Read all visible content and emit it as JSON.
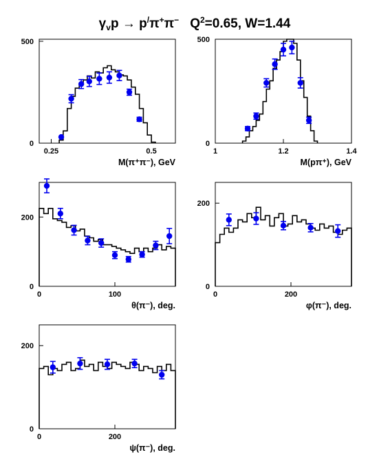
{
  "title": {
    "reaction_lhs": "γ",
    "reaction_lhs_sub": "v",
    "reaction_mid": "p → p",
    "reaction_prime": "/",
    "reaction_pi1": "π",
    "reaction_pi1_sup": "+",
    "reaction_pi2": "π",
    "reaction_pi2_sup": "−",
    "q2_label": "Q",
    "q2_sup": "2",
    "q2_value": "=0.65, W=1.44"
  },
  "colors": {
    "data_points": "#0000ee",
    "histogram": "#000000",
    "frame": "#000000"
  },
  "chart_data": [
    {
      "type": "histogram+scatter",
      "xlabel": "M(π⁺π⁻), GeV",
      "xlim": [
        0.22,
        0.56
      ],
      "ylim": [
        0,
        510
      ],
      "x_ticks": [
        {
          "v": 0.25,
          "label": "0.25"
        },
        {
          "v": 0.5,
          "label": "0.5"
        }
      ],
      "y_ticks": [
        {
          "v": 0,
          "label": "0"
        },
        {
          "v": 500,
          "label": "500"
        }
      ],
      "hist_edges": [
        0.27,
        0.28,
        0.29,
        0.3,
        0.31,
        0.32,
        0.33,
        0.34,
        0.35,
        0.36,
        0.37,
        0.38,
        0.39,
        0.4,
        0.41,
        0.42,
        0.43,
        0.44,
        0.45,
        0.46,
        0.47,
        0.48,
        0.49,
        0.5,
        0.51
      ],
      "hist_values": [
        15,
        60,
        170,
        230,
        270,
        290,
        310,
        330,
        320,
        350,
        345,
        370,
        380,
        360,
        350,
        335,
        330,
        310,
        275,
        240,
        170,
        100,
        40,
        5
      ],
      "points": [
        {
          "x": 0.275,
          "y": 30,
          "err": 0
        },
        {
          "x": 0.3,
          "y": 218,
          "err": 20
        },
        {
          "x": 0.325,
          "y": 290,
          "err": 22
        },
        {
          "x": 0.345,
          "y": 303,
          "err": 25
        },
        {
          "x": 0.37,
          "y": 316,
          "err": 28
        },
        {
          "x": 0.395,
          "y": 322,
          "err": 28
        },
        {
          "x": 0.42,
          "y": 332,
          "err": 25
        },
        {
          "x": 0.445,
          "y": 250,
          "err": 15
        },
        {
          "x": 0.47,
          "y": 117,
          "err": 10
        }
      ]
    },
    {
      "type": "histogram+scatter",
      "xlabel": "M(pπ⁺), GeV",
      "xlim": [
        1.0,
        1.4
      ],
      "ylim": [
        0,
        500
      ],
      "x_ticks": [
        {
          "v": 1.0,
          "label": "1"
        },
        {
          "v": 1.2,
          "label": "1.2"
        },
        {
          "v": 1.4,
          "label": "1.4"
        }
      ],
      "y_ticks": [
        {
          "v": 0,
          "label": "0"
        },
        {
          "v": 500,
          "label": "500"
        }
      ],
      "hist_edges": [
        1.08,
        1.09,
        1.1,
        1.11,
        1.12,
        1.13,
        1.14,
        1.15,
        1.16,
        1.17,
        1.18,
        1.19,
        1.2,
        1.21,
        1.22,
        1.23,
        1.24,
        1.25,
        1.26,
        1.27,
        1.28,
        1.29,
        1.3
      ],
      "hist_values": [
        10,
        30,
        60,
        80,
        110,
        140,
        200,
        260,
        300,
        360,
        400,
        440,
        490,
        520,
        510,
        480,
        400,
        300,
        220,
        130,
        60,
        10
      ],
      "points": [
        {
          "x": 1.095,
          "y": 70,
          "err": 10
        },
        {
          "x": 1.12,
          "y": 130,
          "err": 15
        },
        {
          "x": 1.15,
          "y": 290,
          "err": 20
        },
        {
          "x": 1.175,
          "y": 380,
          "err": 25
        },
        {
          "x": 1.2,
          "y": 450,
          "err": 30
        },
        {
          "x": 1.225,
          "y": 460,
          "err": 30
        },
        {
          "x": 1.25,
          "y": 290,
          "err": 25
        },
        {
          "x": 1.275,
          "y": 110,
          "err": 15
        }
      ]
    },
    {
      "type": "histogram+scatter",
      "xlabel": "θ(π⁻), deg.",
      "xlim": [
        0,
        180
      ],
      "ylim": [
        0,
        300
      ],
      "x_ticks": [
        {
          "v": 0,
          "label": "0"
        },
        {
          "v": 100,
          "label": "100"
        }
      ],
      "y_ticks": [
        {
          "v": 0,
          "label": "0"
        },
        {
          "v": 200,
          "label": "200"
        }
      ],
      "hist_edges": [
        0,
        6,
        12,
        18,
        24,
        30,
        36,
        42,
        48,
        54,
        60,
        66,
        72,
        78,
        84,
        90,
        96,
        102,
        108,
        114,
        120,
        126,
        132,
        138,
        144,
        150,
        156,
        162,
        168,
        174,
        180
      ],
      "hist_values": [
        225,
        210,
        225,
        195,
        190,
        185,
        170,
        175,
        160,
        165,
        145,
        140,
        130,
        135,
        120,
        120,
        115,
        110,
        105,
        100,
        95,
        110,
        100,
        110,
        100,
        110,
        120,
        105,
        115,
        110
      ],
      "points": [
        {
          "x": 10,
          "y": 290,
          "err": 20
        },
        {
          "x": 28,
          "y": 210,
          "err": 15
        },
        {
          "x": 46,
          "y": 162,
          "err": 14
        },
        {
          "x": 64,
          "y": 132,
          "err": 12
        },
        {
          "x": 82,
          "y": 125,
          "err": 12
        },
        {
          "x": 100,
          "y": 90,
          "err": 10
        },
        {
          "x": 118,
          "y": 78,
          "err": 8
        },
        {
          "x": 136,
          "y": 92,
          "err": 8
        },
        {
          "x": 154,
          "y": 118,
          "err": 12
        },
        {
          "x": 172,
          "y": 145,
          "err": 22
        }
      ]
    },
    {
      "type": "histogram+scatter",
      "xlabel": "φ(π⁻), deg.",
      "xlim": [
        0,
        360
      ],
      "ylim": [
        0,
        250
      ],
      "x_ticks": [
        {
          "v": 0,
          "label": "0"
        },
        {
          "v": 200,
          "label": "200"
        }
      ],
      "y_ticks": [
        {
          "v": 0,
          "label": "0"
        },
        {
          "v": 200,
          "label": "200"
        }
      ],
      "hist_edges": [
        0,
        12,
        24,
        36,
        48,
        60,
        72,
        84,
        96,
        108,
        120,
        132,
        144,
        156,
        168,
        180,
        192,
        204,
        216,
        228,
        240,
        252,
        264,
        276,
        288,
        300,
        312,
        324,
        336,
        348,
        360
      ],
      "hist_values": [
        105,
        125,
        140,
        130,
        140,
        160,
        155,
        175,
        165,
        190,
        160,
        170,
        145,
        165,
        175,
        145,
        150,
        170,
        155,
        160,
        150,
        140,
        135,
        150,
        140,
        145,
        130,
        125,
        135,
        140
      ],
      "points": [
        {
          "x": 36,
          "y": 160,
          "err": 14
        },
        {
          "x": 108,
          "y": 163,
          "err": 14
        },
        {
          "x": 180,
          "y": 146,
          "err": 10
        },
        {
          "x": 252,
          "y": 141,
          "err": 10
        },
        {
          "x": 324,
          "y": 133,
          "err": 15
        }
      ]
    },
    {
      "type": "histogram+scatter",
      "xlabel": "ψ(π⁻), deg.",
      "xlim": [
        0,
        360
      ],
      "ylim": [
        0,
        250
      ],
      "x_ticks": [
        {
          "v": 0,
          "label": "0"
        },
        {
          "v": 200,
          "label": "200"
        }
      ],
      "y_ticks": [
        {
          "v": 0,
          "label": "0"
        },
        {
          "v": 200,
          "label": "200"
        }
      ],
      "hist_edges": [
        0,
        12,
        24,
        36,
        48,
        60,
        72,
        84,
        96,
        108,
        120,
        132,
        144,
        156,
        168,
        180,
        192,
        204,
        216,
        228,
        240,
        252,
        264,
        276,
        288,
        300,
        312,
        324,
        336,
        348,
        360
      ],
      "hist_values": [
        145,
        150,
        130,
        145,
        140,
        155,
        160,
        140,
        145,
        165,
        150,
        155,
        140,
        160,
        150,
        145,
        160,
        155,
        150,
        145,
        160,
        155,
        140,
        150,
        145,
        135,
        150,
        140,
        155,
        140
      ],
      "points": [
        {
          "x": 36,
          "y": 148,
          "err": 14
        },
        {
          "x": 108,
          "y": 157,
          "err": 14
        },
        {
          "x": 180,
          "y": 155,
          "err": 12
        },
        {
          "x": 252,
          "y": 157,
          "err": 10
        },
        {
          "x": 324,
          "y": 130,
          "err": 10
        }
      ]
    }
  ]
}
